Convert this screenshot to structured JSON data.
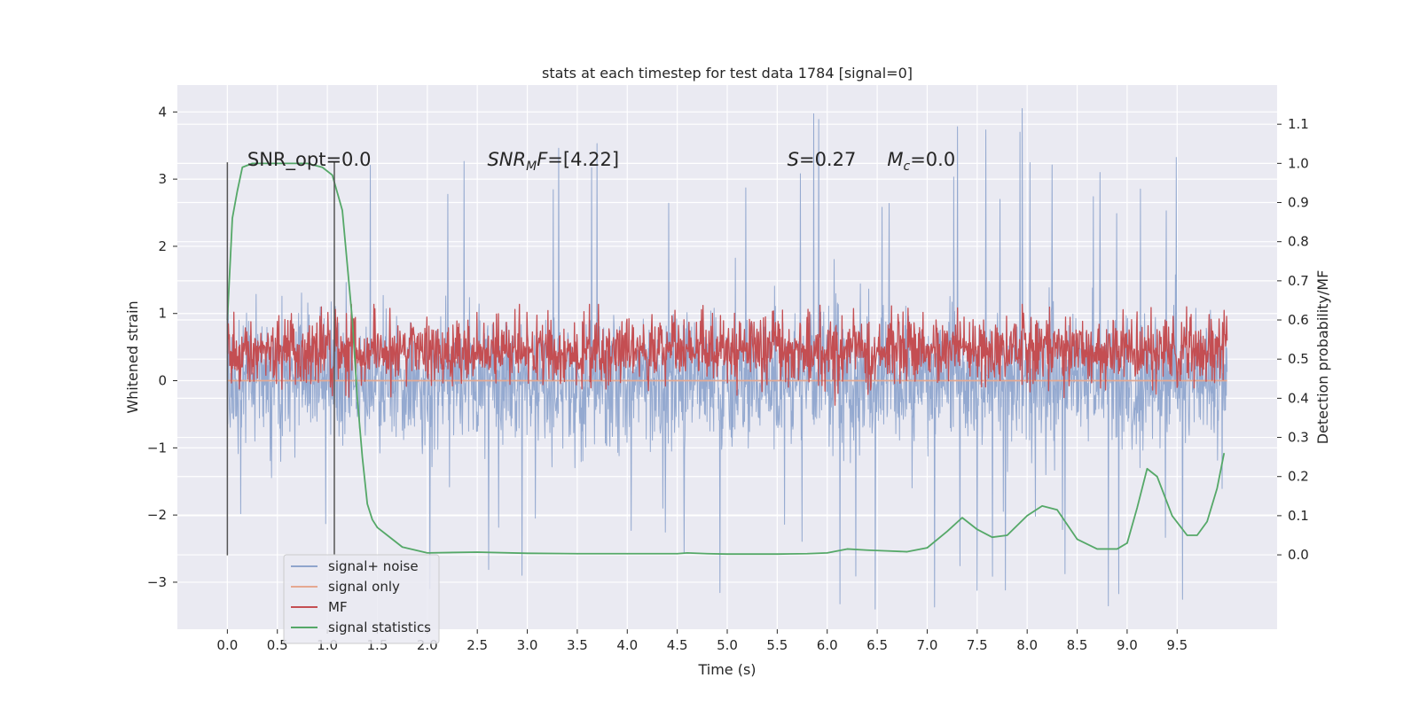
{
  "chart_data": {
    "type": "line",
    "title": "stats at each timestep for test data 1784 [signal=0]",
    "xlabel": "Time (s)",
    "ylabel": "Whitened strain",
    "y2label": "Detection probability/MF",
    "xlim": [
      -0.5,
      10.5
    ],
    "ylim": [
      -3.7,
      4.4
    ],
    "y2lim": [
      -0.19,
      1.2
    ],
    "x_ticks": [
      "0.0",
      "0.5",
      "1.0",
      "1.5",
      "2.0",
      "2.5",
      "3.0",
      "3.5",
      "4.0",
      "4.5",
      "5.0",
      "5.5",
      "6.0",
      "6.5",
      "7.0",
      "7.5",
      "8.0",
      "8.5",
      "9.0",
      "9.5"
    ],
    "x_tick_values": [
      0,
      0.5,
      1,
      1.5,
      2,
      2.5,
      3,
      3.5,
      4,
      4.5,
      5,
      5.5,
      6,
      6.5,
      7,
      7.5,
      8,
      8.5,
      9,
      9.5
    ],
    "y_ticks": [
      "−3",
      "−2",
      "−1",
      "0",
      "1",
      "2",
      "3",
      "4"
    ],
    "y_tick_values": [
      -3,
      -2,
      -1,
      0,
      1,
      2,
      3,
      4
    ],
    "y2_ticks": [
      "0.0",
      "0.1",
      "0.2",
      "0.3",
      "0.4",
      "0.5",
      "0.6",
      "0.7",
      "0.8",
      "0.9",
      "1.0",
      "1.1"
    ],
    "y2_tick_values": [
      0,
      0.1,
      0.2,
      0.3,
      0.4,
      0.5,
      0.6,
      0.7,
      0.8,
      0.9,
      1.0,
      1.1
    ],
    "grid": true,
    "legend_position": "bottom-left",
    "annotations": [
      {
        "text": "SNR_opt=0.0",
        "x": 0.2,
        "y": 3.2
      },
      {
        "text": "SNR_MF=[4.22]",
        "x": 2.6,
        "y": 3.2
      },
      {
        "text": "S=0.27",
        "x": 5.6,
        "y": 3.2
      },
      {
        "text": "M_c=0.0",
        "x": 6.6,
        "y": 3.2
      }
    ],
    "vertical_markers": [
      {
        "x": 0.0,
        "y_from": -2.6,
        "y_to": 3.25
      },
      {
        "x": 1.07,
        "y_from": -2.6,
        "y_to": 3.25
      }
    ],
    "series": [
      {
        "name": "signal+ noise",
        "color": "#8fa5cd",
        "axis": "left",
        "kind": "noise",
        "x_range": [
          0.0,
          10.0
        ],
        "band": [
          -0.85,
          0.9
        ],
        "spike_max": 4.05,
        "spike_min": -3.4,
        "n_points": 2400
      },
      {
        "name": "signal only",
        "color": "#e5a891",
        "axis": "left",
        "x": [
          0.0,
          10.0
        ],
        "values": [
          0.0,
          0.0
        ]
      },
      {
        "name": "MF",
        "color": "#c44e52",
        "axis": "right",
        "kind": "noise",
        "x_range": [
          0.0,
          10.0
        ],
        "center": 0.52,
        "band": [
          0.45,
          0.6
        ],
        "spike_max": 0.64,
        "n_points": 2000
      },
      {
        "name": "signal statistics",
        "color": "#55a868",
        "axis": "right",
        "x": [
          0.0,
          0.05,
          0.1,
          0.15,
          0.25,
          0.4,
          0.6,
          0.8,
          0.95,
          1.05,
          1.15,
          1.25,
          1.3,
          1.35,
          1.4,
          1.45,
          1.5,
          1.6,
          1.75,
          2.0,
          2.5,
          3.0,
          3.5,
          4.0,
          4.5,
          4.6,
          4.8,
          5.0,
          5.5,
          5.8,
          6.0,
          6.2,
          6.4,
          6.6,
          6.8,
          7.0,
          7.2,
          7.35,
          7.5,
          7.65,
          7.8,
          8.0,
          8.15,
          8.3,
          8.5,
          8.7,
          8.9,
          9.0,
          9.1,
          9.2,
          9.3,
          9.45,
          9.6,
          9.7,
          9.8,
          9.9,
          9.97
        ],
        "values": [
          0.6,
          0.86,
          0.93,
          0.99,
          1.0,
          1.0,
          1.0,
          1.0,
          0.99,
          0.97,
          0.88,
          0.6,
          0.4,
          0.25,
          0.13,
          0.09,
          0.07,
          0.05,
          0.02,
          0.005,
          0.007,
          0.004,
          0.003,
          0.003,
          0.003,
          0.005,
          0.003,
          0.002,
          0.002,
          0.003,
          0.005,
          0.015,
          0.012,
          0.01,
          0.008,
          0.018,
          0.06,
          0.095,
          0.065,
          0.045,
          0.05,
          0.1,
          0.125,
          0.115,
          0.04,
          0.015,
          0.015,
          0.03,
          0.12,
          0.22,
          0.2,
          0.1,
          0.05,
          0.05,
          0.085,
          0.17,
          0.26
        ]
      }
    ]
  }
}
